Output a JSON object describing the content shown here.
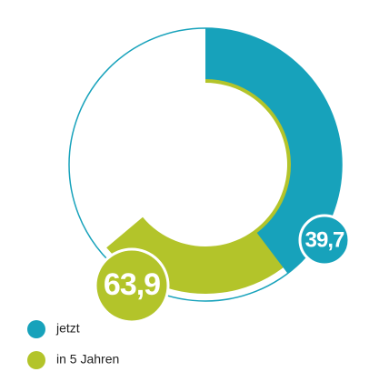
{
  "chart_data": {
    "type": "radial",
    "categories": [
      "jetzt",
      "in 5 Jahren"
    ],
    "values": [
      39.7,
      63.9
    ],
    "value_labels": [
      "39,7",
      "63,9"
    ],
    "colors": [
      "#17a2bb",
      "#b3c42a"
    ],
    "ylim": [
      0,
      100
    ]
  }
}
